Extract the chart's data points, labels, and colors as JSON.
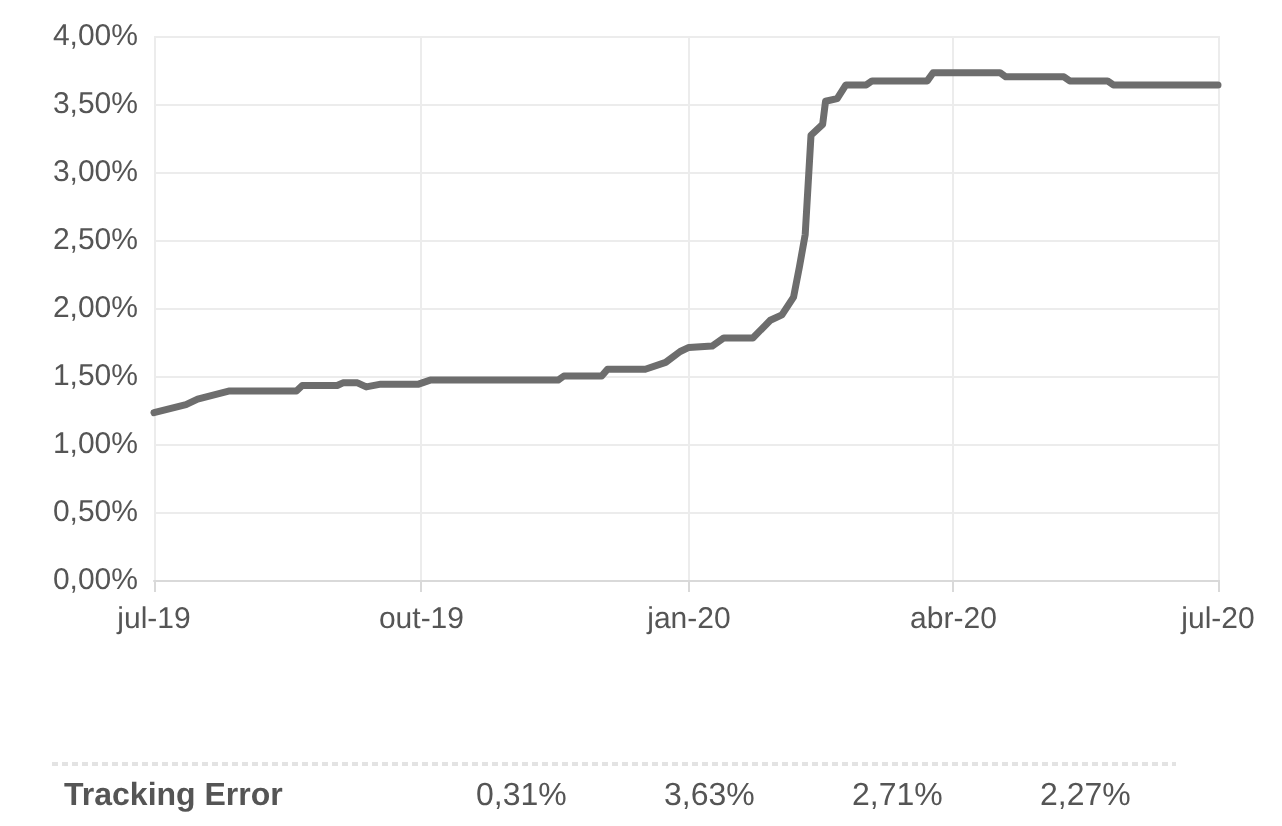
{
  "chart_data": {
    "type": "line",
    "x": [
      "2019-07-01",
      "2019-07-12",
      "2019-07-16",
      "2019-07-27",
      "2019-08-19",
      "2019-08-21",
      "2019-09-02",
      "2019-09-04",
      "2019-09-09",
      "2019-09-12",
      "2019-09-17",
      "2019-09-30",
      "2019-10-04",
      "2019-11-17",
      "2019-11-19",
      "2019-12-02",
      "2019-12-04",
      "2019-12-17",
      "2019-12-24",
      "2019-12-29",
      "2020-01-01",
      "2020-01-09",
      "2020-01-13",
      "2020-01-23",
      "2020-01-29",
      "2020-02-02",
      "2020-02-06",
      "2020-02-08",
      "2020-02-10",
      "2020-02-12",
      "2020-02-16",
      "2020-02-17",
      "2020-02-21",
      "2020-02-24",
      "2020-03-02",
      "2020-03-04",
      "2020-03-23",
      "2020-03-25",
      "2020-04-17",
      "2020-04-19",
      "2020-05-09",
      "2020-05-11",
      "2020-05-24",
      "2020-05-26",
      "2020-07-01"
    ],
    "series": [
      {
        "color": "#6d6d6d",
        "values": [
          1.23,
          1.29,
          1.33,
          1.39,
          1.39,
          1.43,
          1.43,
          1.45,
          1.45,
          1.42,
          1.44,
          1.44,
          1.47,
          1.47,
          1.5,
          1.5,
          1.55,
          1.55,
          1.6,
          1.68,
          1.71,
          1.72,
          1.78,
          1.78,
          1.91,
          1.95,
          2.08,
          2.3,
          2.54,
          3.27,
          3.35,
          3.52,
          3.54,
          3.64,
          3.64,
          3.67,
          3.67,
          3.73,
          3.73,
          3.7,
          3.7,
          3.67,
          3.67,
          3.64,
          3.64
        ]
      }
    ],
    "xlim": [
      "2019-07-01",
      "2020-07-01"
    ],
    "xticks": [
      {
        "value": "2019-07-01",
        "label": "jul-19"
      },
      {
        "value": "2019-10-01",
        "label": "out-19"
      },
      {
        "value": "2020-01-01",
        "label": "jan-20"
      },
      {
        "value": "2020-04-01",
        "label": "abr-20"
      },
      {
        "value": "2020-07-01",
        "label": "jul-20"
      }
    ],
    "ylim": [
      0,
      4
    ],
    "yticks": [
      {
        "value": 0,
        "label": "0,00%"
      },
      {
        "value": 0.5,
        "label": "0,50%"
      },
      {
        "value": 1,
        "label": "1,00%"
      },
      {
        "value": 1.5,
        "label": "1,50%"
      },
      {
        "value": 2,
        "label": "2,00%"
      },
      {
        "value": 2.5,
        "label": "2,50%"
      },
      {
        "value": 3,
        "label": "3,00%"
      },
      {
        "value": 3.5,
        "label": "3,50%"
      },
      {
        "value": 4,
        "label": "4,00%"
      }
    ],
    "grid": true,
    "marker": "none",
    "line_style": "solid",
    "annotations": [
      "Tracking Error",
      "0,31%",
      "3,63%",
      "2,71%",
      "2,27%"
    ]
  }
}
